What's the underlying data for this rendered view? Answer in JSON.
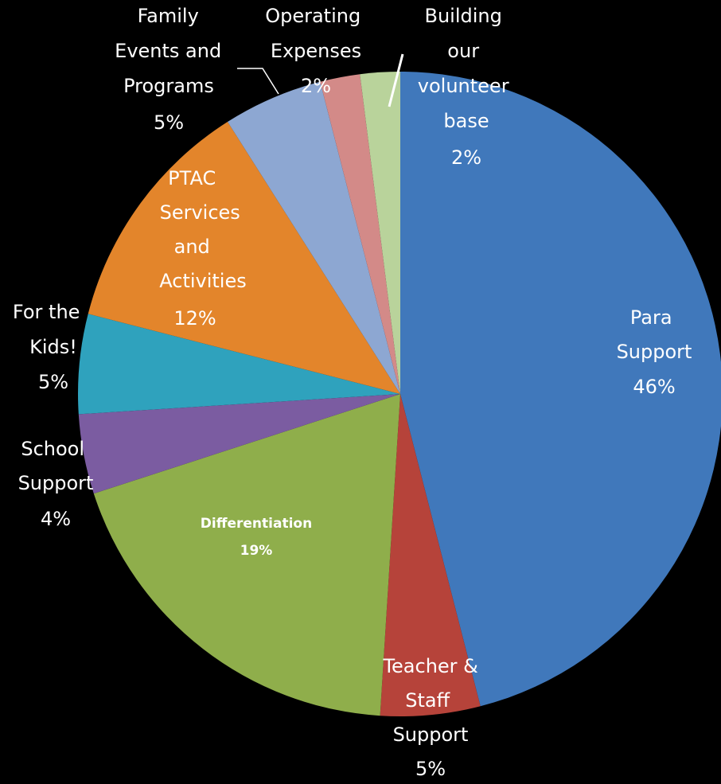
{
  "chart_data": {
    "type": "pie",
    "categories": [
      "Para Support",
      "Teacher & Staff Support",
      "Differentiation",
      "School Support",
      "For the Kids!",
      "PTAC Services and Activities",
      "Family Events and Programs",
      "Operating Expenses",
      "Building our volunteer base"
    ],
    "values": [
      46,
      5,
      19,
      4,
      5,
      12,
      5,
      2,
      2
    ],
    "value_labels": [
      "46%",
      "5%",
      "19%",
      "4%",
      "5%",
      "12%",
      "5%",
      "2%",
      "2%"
    ],
    "colors": [
      "#4078bb",
      "#b6433a",
      "#8fae4b",
      "#7b5ca1",
      "#2fa2bd",
      "#e3852b",
      "#8da7d2",
      "#d38a88",
      "#b9d39b"
    ]
  }
}
